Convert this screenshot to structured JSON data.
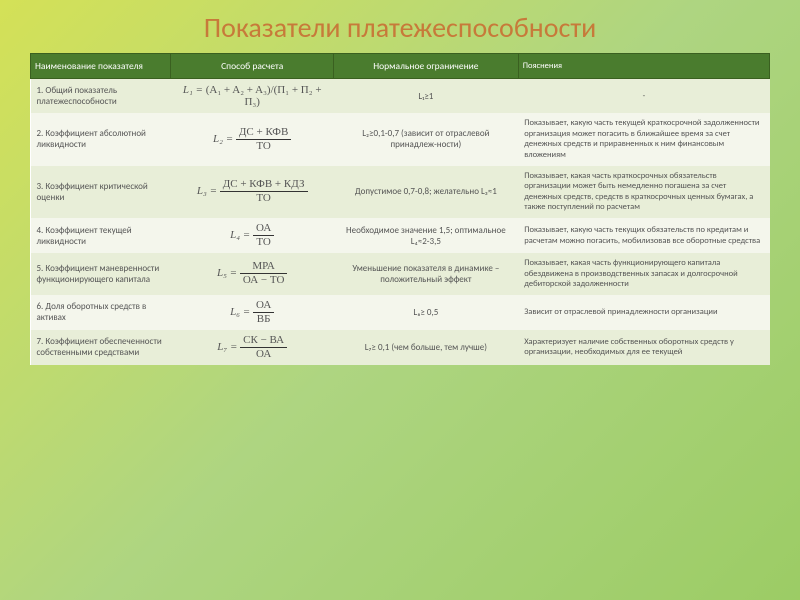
{
  "title": "Показатели платежеспособности",
  "columns": [
    "Наименование показателя",
    "Способ расчета",
    "Нормальное ограничение",
    "Пояснения"
  ],
  "rows": [
    {
      "name": "1. Общий показатель платежеспособности",
      "formula_prefix": "L₁ =",
      "formula_text": "(A₁ + A₂ + A₃)/(П₁ + П₂ + П₃)",
      "constraint": "L₁≥1",
      "explanation": "-"
    },
    {
      "name": "2. Коэффициент абсолютной ликвидности",
      "formula_prefix": "L₂ =",
      "numerator": "ДС + КФВ",
      "denominator": "ТО",
      "constraint": "L₂≥0,1-0,7 (зависит от отраслевой принадлеж-ности)",
      "explanation": "Показывает, какую часть текущей краткосрочной задолженности организация может погасить в ближайшее время за счет денежных средств и приравненных к ним финансовым вложениям"
    },
    {
      "name": "3. Коэффициент критической оценки",
      "formula_prefix": "L₃ =",
      "numerator": "ДС + КФВ + КДЗ",
      "denominator": "ТО",
      "constraint": "Допустимое 0,7-0,8; желательно L₃≈1",
      "explanation": "Показывает, какая часть краткосрочных обязательств организации может быть немедленно погашена за счет денежных средств, средств в краткосрочных ценных бумагах, а также поступлений по расчетам"
    },
    {
      "name": "4. Коэффициент текущей ликвидности",
      "formula_prefix": "L₄ =",
      "numerator": "ОА",
      "denominator": "ТО",
      "constraint": "Необходимое значение 1,5; оптимальное L₄≈2-3,5",
      "explanation": "Показывает, какую часть текущих обязательств по кредитам и расчетам можно погасить, мобилизовав все оборотные средства"
    },
    {
      "name": "5. Коэффициент маневренности функционирующего капитала",
      "formula_prefix": "L₅ =",
      "numerator": "МРА",
      "denominator": "ОА − ТО",
      "constraint": "Уменьшение показателя в динамике – положительный эффект",
      "explanation": "Показывает, какая часть функционирующего капитала обездвижена в производственных запасах и долгосрочной дебиторской задолженности"
    },
    {
      "name": "6. Доля оборотных средств в активах",
      "formula_prefix": "L₆ =",
      "numerator": "ОА",
      "denominator": "ВБ",
      "constraint": "L₆≥ 0,5",
      "explanation": "Зависит от отраслевой принадлежности организации"
    },
    {
      "name": "7. Коэффициент обеспеченности собственными средствами",
      "formula_prefix": "L₇ =",
      "numerator": "СК − ВА",
      "denominator": "ОА",
      "constraint": "L₇≥ 0,1 (чем больше, тем лучше)",
      "explanation": "Характеризует наличие собственных оборотных средств у организации, необходимых для ее текущей"
    }
  ],
  "colors": {
    "title_color": "#c77a3a",
    "header_bg": "#4a7c2e",
    "row_odd_bg": "#e8eed8",
    "row_even_bg": "#f4f6ec",
    "slide_bg_start": "#d4e157",
    "slide_bg_end": "#9ccc65"
  },
  "typography": {
    "title_fontsize": 28,
    "table_fontsize": 9,
    "explanation_fontsize": 8.5,
    "formula_fontsize": 11
  }
}
